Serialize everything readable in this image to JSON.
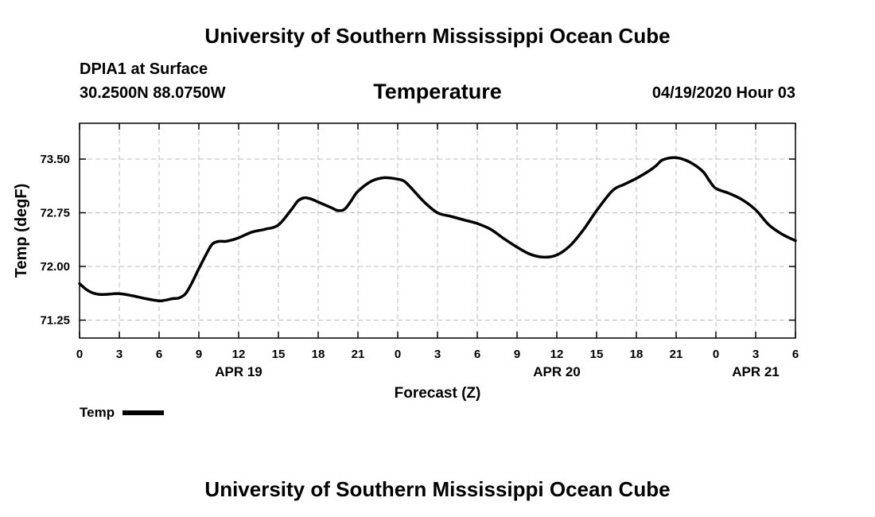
{
  "header": {
    "title": "University of Southern Mississippi Ocean Cube",
    "station": "DPIA1 at Surface",
    "coords": "30.2500N 88.0750W",
    "variable": "Temperature",
    "datetime": "04/19/2020 Hour 03"
  },
  "footer": {
    "title": "University of Southern Mississippi Ocean Cube"
  },
  "legend": {
    "label": "Temp"
  },
  "chart_data": {
    "type": "line",
    "title": "Temperature",
    "xlabel": "Forecast (Z)",
    "ylabel": "Temp (degF)",
    "xlim": [
      0,
      54
    ],
    "ylim": [
      71.0,
      74.0
    ],
    "yticks": [
      71.25,
      72.0,
      72.75,
      73.5
    ],
    "ytick_labels": [
      "71.25",
      "72.00",
      "72.75",
      "73.50"
    ],
    "xticks": [
      0,
      3,
      6,
      9,
      12,
      15,
      18,
      21,
      24,
      27,
      30,
      33,
      36,
      39,
      42,
      45,
      48,
      51,
      54
    ],
    "xtick_labels": [
      "0",
      "3",
      "6",
      "9",
      "12",
      "15",
      "18",
      "21",
      "0",
      "3",
      "6",
      "9",
      "12",
      "15",
      "18",
      "21",
      "0",
      "3",
      "6"
    ],
    "date_labels": [
      {
        "x": 12,
        "label": "APR 19"
      },
      {
        "x": 36,
        "label": "APR 20"
      },
      {
        "x": 51,
        "label": "APR 21"
      }
    ],
    "grid": true,
    "series": [
      {
        "name": "Temp",
        "color": "#000000",
        "x": [
          0,
          0.5,
          1,
          1.5,
          2,
          3,
          4,
          5,
          6,
          6.5,
          7,
          7.5,
          8,
          8.5,
          9,
          9.5,
          10,
          10.5,
          11,
          11.5,
          12,
          13,
          14,
          15,
          16,
          16.5,
          17,
          17.5,
          18,
          19,
          19.5,
          20,
          20.5,
          21,
          22,
          23,
          24,
          24.5,
          25,
          26,
          27,
          28,
          29,
          30,
          31,
          32,
          33,
          34,
          35,
          36,
          37,
          38,
          39,
          40,
          40.5,
          41,
          42,
          43,
          43.5,
          44,
          45,
          46,
          47,
          47.5,
          48,
          49,
          50,
          51,
          52,
          53,
          54
        ],
        "values": [
          71.76,
          71.68,
          71.63,
          71.61,
          71.61,
          71.62,
          71.59,
          71.55,
          71.52,
          71.53,
          71.55,
          71.56,
          71.62,
          71.78,
          71.97,
          72.15,
          72.31,
          72.35,
          72.35,
          72.37,
          72.4,
          72.48,
          72.52,
          72.58,
          72.8,
          72.92,
          72.96,
          72.94,
          72.9,
          72.82,
          72.78,
          72.8,
          72.92,
          73.05,
          73.19,
          73.24,
          73.22,
          73.19,
          73.1,
          72.9,
          72.75,
          72.7,
          72.65,
          72.6,
          72.52,
          72.39,
          72.27,
          72.17,
          72.13,
          72.16,
          72.29,
          72.51,
          72.78,
          73.02,
          73.1,
          73.14,
          73.23,
          73.34,
          73.41,
          73.49,
          73.52,
          73.46,
          73.33,
          73.2,
          73.09,
          73.02,
          72.93,
          72.79,
          72.58,
          72.45,
          72.36
        ]
      }
    ]
  }
}
